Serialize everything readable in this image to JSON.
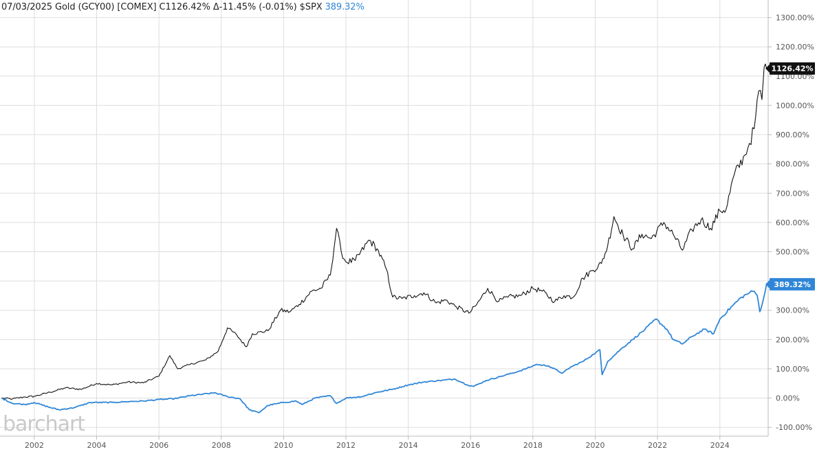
{
  "header": {
    "date": "07/03/2025",
    "symbol": "Gold (GCY00) [COMEX]",
    "close": "C1126.42%",
    "change": "Δ-11.45% (-0.01%)",
    "compare_symbol": "$SPX",
    "compare_value": "389.32%"
  },
  "watermark": "barchart",
  "colors": {
    "gold": "#111111",
    "spx": "#2f86d8",
    "grid": "#dddddd",
    "axis": "#bbbbbb"
  },
  "chart_data": {
    "type": "line",
    "xlim": [
      2000.9,
      2025.55
    ],
    "ylim": [
      -130,
      1360
    ],
    "y_ticks": [
      {
        "value": 1300,
        "label": "1300.00%"
      },
      {
        "value": 1200,
        "label": "1200.00%"
      },
      {
        "value": 1100,
        "label": "1100.00%"
      },
      {
        "value": 1000,
        "label": "1000.00%"
      },
      {
        "value": 900,
        "label": "900.00%"
      },
      {
        "value": 800,
        "label": "800.00%"
      },
      {
        "value": 700,
        "label": "700.00%"
      },
      {
        "value": 600,
        "label": "600.00%"
      },
      {
        "value": 500,
        "label": "500.00%"
      },
      {
        "value": 400,
        "label": "400.00%"
      },
      {
        "value": 300,
        "label": "300.00%"
      },
      {
        "value": 200,
        "label": "200.00%"
      },
      {
        "value": 100,
        "label": "100.00%"
      },
      {
        "value": 0,
        "label": "0.00%"
      },
      {
        "value": -100,
        "label": "-100.00%"
      }
    ],
    "x_ticks": [
      {
        "value": 2002,
        "label": "2002"
      },
      {
        "value": 2004,
        "label": "2004"
      },
      {
        "value": 2006,
        "label": "2006"
      },
      {
        "value": 2008,
        "label": "2008"
      },
      {
        "value": 2010,
        "label": "2010"
      },
      {
        "value": 2012,
        "label": "2012"
      },
      {
        "value": 2014,
        "label": "2014"
      },
      {
        "value": 2016,
        "label": "2016"
      },
      {
        "value": 2018,
        "label": "2018"
      },
      {
        "value": 2020,
        "label": "2020"
      },
      {
        "value": 2022,
        "label": "2022"
      },
      {
        "value": 2024,
        "label": "2024"
      }
    ],
    "grid": true,
    "series": [
      {
        "name": "Gold (GCY00)",
        "color": "#111111",
        "last_label": "1126.42%",
        "points": [
          [
            2000.95,
            0
          ],
          [
            2001.3,
            -3
          ],
          [
            2001.7,
            4
          ],
          [
            2002.0,
            6
          ],
          [
            2002.5,
            20
          ],
          [
            2003.0,
            35
          ],
          [
            2003.5,
            30
          ],
          [
            2004.0,
            50
          ],
          [
            2004.5,
            45
          ],
          [
            2005.0,
            55
          ],
          [
            2005.5,
            52
          ],
          [
            2006.0,
            75
          ],
          [
            2006.35,
            145
          ],
          [
            2006.6,
            100
          ],
          [
            2007.0,
            115
          ],
          [
            2007.5,
            130
          ],
          [
            2007.9,
            160
          ],
          [
            2008.2,
            240
          ],
          [
            2008.5,
            215
          ],
          [
            2008.8,
            175
          ],
          [
            2009.0,
            220
          ],
          [
            2009.5,
            230
          ],
          [
            2009.9,
            300
          ],
          [
            2010.2,
            295
          ],
          [
            2010.5,
            320
          ],
          [
            2010.9,
            365
          ],
          [
            2011.2,
            375
          ],
          [
            2011.5,
            420
          ],
          [
            2011.7,
            580
          ],
          [
            2011.85,
            500
          ],
          [
            2012.0,
            465
          ],
          [
            2012.3,
            470
          ],
          [
            2012.75,
            540
          ],
          [
            2013.0,
            510
          ],
          [
            2013.3,
            440
          ],
          [
            2013.5,
            345
          ],
          [
            2013.8,
            340
          ],
          [
            2014.2,
            350
          ],
          [
            2014.5,
            360
          ],
          [
            2014.9,
            325
          ],
          [
            2015.2,
            335
          ],
          [
            2015.5,
            315
          ],
          [
            2015.95,
            290
          ],
          [
            2016.2,
            320
          ],
          [
            2016.55,
            375
          ],
          [
            2016.9,
            330
          ],
          [
            2017.2,
            345
          ],
          [
            2017.6,
            350
          ],
          [
            2018.0,
            375
          ],
          [
            2018.3,
            365
          ],
          [
            2018.7,
            330
          ],
          [
            2019.0,
            350
          ],
          [
            2019.3,
            345
          ],
          [
            2019.6,
            410
          ],
          [
            2019.9,
            435
          ],
          [
            2020.2,
            460
          ],
          [
            2020.4,
            520
          ],
          [
            2020.6,
            620
          ],
          [
            2020.9,
            555
          ],
          [
            2021.2,
            510
          ],
          [
            2021.5,
            560
          ],
          [
            2021.8,
            545
          ],
          [
            2022.2,
            600
          ],
          [
            2022.5,
            560
          ],
          [
            2022.8,
            505
          ],
          [
            2023.1,
            575
          ],
          [
            2023.4,
            610
          ],
          [
            2023.7,
            580
          ],
          [
            2024.0,
            640
          ],
          [
            2024.2,
            645
          ],
          [
            2024.45,
            760
          ],
          [
            2024.8,
            830
          ],
          [
            2024.95,
            870
          ],
          [
            2025.1,
            920
          ],
          [
            2025.25,
            1050
          ],
          [
            2025.35,
            1020
          ],
          [
            2025.42,
            1130
          ],
          [
            2025.5,
            1126
          ]
        ]
      },
      {
        "name": "$SPX",
        "color": "#2f86d8",
        "last_label": "389.32%",
        "points": [
          [
            2000.95,
            0
          ],
          [
            2001.3,
            -18
          ],
          [
            2001.7,
            -22
          ],
          [
            2002.0,
            -15
          ],
          [
            2002.5,
            -32
          ],
          [
            2002.8,
            -40
          ],
          [
            2003.3,
            -32
          ],
          [
            2003.8,
            -15
          ],
          [
            2004.5,
            -15
          ],
          [
            2005.0,
            -12
          ],
          [
            2005.5,
            -10
          ],
          [
            2006.0,
            -5
          ],
          [
            2006.5,
            -2
          ],
          [
            2007.0,
            8
          ],
          [
            2007.8,
            18
          ],
          [
            2008.2,
            5
          ],
          [
            2008.6,
            -2
          ],
          [
            2008.9,
            -40
          ],
          [
            2009.2,
            -50
          ],
          [
            2009.5,
            -25
          ],
          [
            2010.0,
            -15
          ],
          [
            2010.4,
            -10
          ],
          [
            2010.6,
            -22
          ],
          [
            2011.0,
            0
          ],
          [
            2011.5,
            8
          ],
          [
            2011.7,
            -18
          ],
          [
            2012.0,
            0
          ],
          [
            2012.5,
            5
          ],
          [
            2013.0,
            20
          ],
          [
            2013.5,
            30
          ],
          [
            2014.0,
            45
          ],
          [
            2014.5,
            55
          ],
          [
            2015.0,
            60
          ],
          [
            2015.5,
            65
          ],
          [
            2015.9,
            45
          ],
          [
            2016.1,
            40
          ],
          [
            2016.5,
            60
          ],
          [
            2017.0,
            75
          ],
          [
            2017.5,
            90
          ],
          [
            2017.9,
            105
          ],
          [
            2018.1,
            115
          ],
          [
            2018.5,
            110
          ],
          [
            2018.95,
            85
          ],
          [
            2019.2,
            105
          ],
          [
            2019.6,
            125
          ],
          [
            2019.95,
            150
          ],
          [
            2020.15,
            165
          ],
          [
            2020.22,
            80
          ],
          [
            2020.4,
            125
          ],
          [
            2020.8,
            165
          ],
          [
            2021.2,
            200
          ],
          [
            2021.6,
            235
          ],
          [
            2021.95,
            270
          ],
          [
            2022.3,
            235
          ],
          [
            2022.5,
            200
          ],
          [
            2022.8,
            185
          ],
          [
            2023.1,
            210
          ],
          [
            2023.5,
            235
          ],
          [
            2023.8,
            220
          ],
          [
            2024.0,
            270
          ],
          [
            2024.4,
            315
          ],
          [
            2024.7,
            345
          ],
          [
            2024.95,
            360
          ],
          [
            2025.1,
            365
          ],
          [
            2025.2,
            350
          ],
          [
            2025.28,
            295
          ],
          [
            2025.4,
            340
          ],
          [
            2025.5,
            389
          ]
        ]
      }
    ]
  }
}
